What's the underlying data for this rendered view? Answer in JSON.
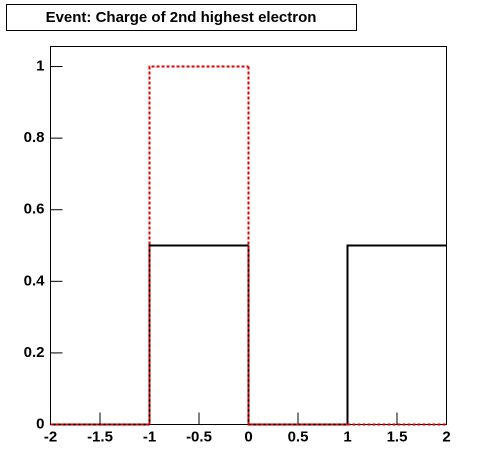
{
  "chart_data": {
    "type": "histogram",
    "title": "Event: Charge of 2nd highest electron",
    "bins": [
      -2,
      -1,
      0,
      1,
      2
    ],
    "series": [
      {
        "color": "#000000",
        "line_style": "solid",
        "values": [
          0,
          0.5,
          0,
          0.5
        ]
      },
      {
        "color": "#dd0000",
        "line_style": "dashed",
        "values": [
          0,
          1,
          0,
          0
        ]
      }
    ],
    "xlim": [
      -2,
      2
    ],
    "ylim": [
      0,
      1.056
    ],
    "xticks": [
      -2,
      -1.5,
      -1,
      -0.5,
      0,
      0.5,
      1,
      1.5,
      2
    ],
    "yticks": [
      0,
      0.2,
      0.4,
      0.6,
      0.8,
      1
    ],
    "grid": false
  }
}
